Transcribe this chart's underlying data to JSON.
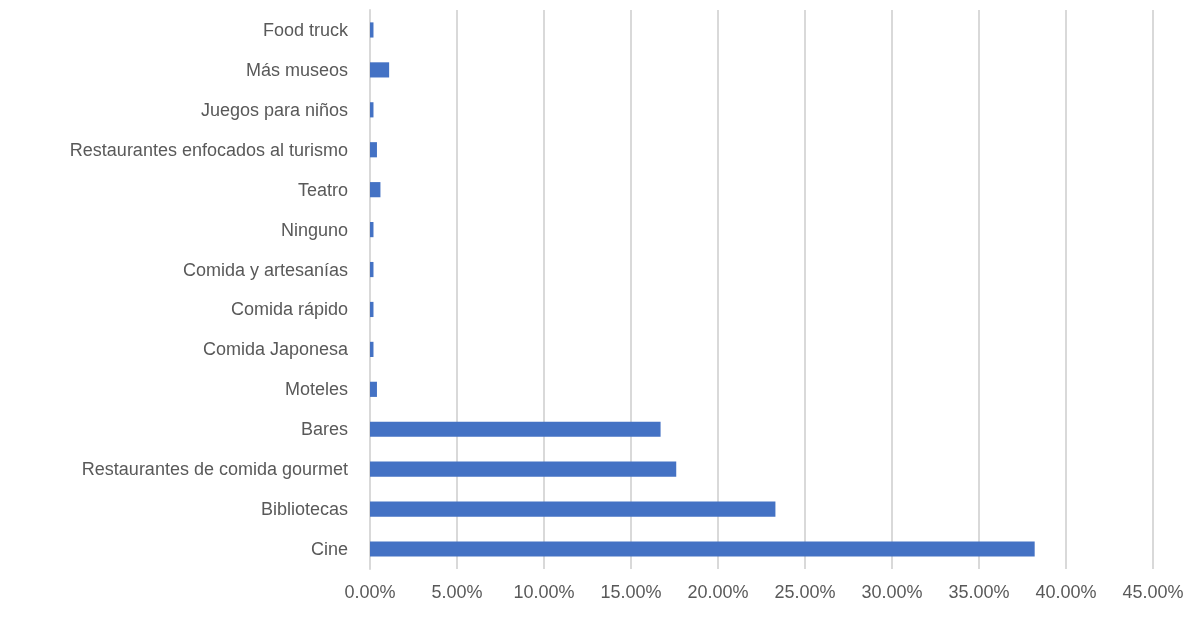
{
  "chart_data": {
    "type": "bar",
    "orientation": "horizontal",
    "categories": [
      "Food truck",
      "Más museos",
      "Juegos para niños",
      "Restaurantes enfocados al turismo",
      "Teatro",
      "Ninguno",
      "Comida y artesanías",
      "Comida rápido",
      "Comida Japonesa",
      "Moteles",
      "Bares",
      "Restaurantes de comida gourmet",
      "Bibliotecas",
      "Cine"
    ],
    "values": [
      0.2,
      1.1,
      0.2,
      0.4,
      0.6,
      0.2,
      0.2,
      0.2,
      0.2,
      0.4,
      16.7,
      17.6,
      23.3,
      38.2
    ],
    "color": "#4472c4",
    "xlim": [
      0,
      45
    ],
    "xticks": [
      {
        "value": 0,
        "label": "0.00%"
      },
      {
        "value": 5,
        "label": "5.00%"
      },
      {
        "value": 10,
        "label": "10.00%"
      },
      {
        "value": 15,
        "label": "15.00%"
      },
      {
        "value": 20,
        "label": "20.00%"
      },
      {
        "value": 25,
        "label": "25.00%"
      },
      {
        "value": 30,
        "label": "30.00%"
      },
      {
        "value": 35,
        "label": "35.00%"
      },
      {
        "value": 40,
        "label": "40.00%"
      },
      {
        "value": 45,
        "label": "45.00%"
      }
    ],
    "grid": "x"
  }
}
